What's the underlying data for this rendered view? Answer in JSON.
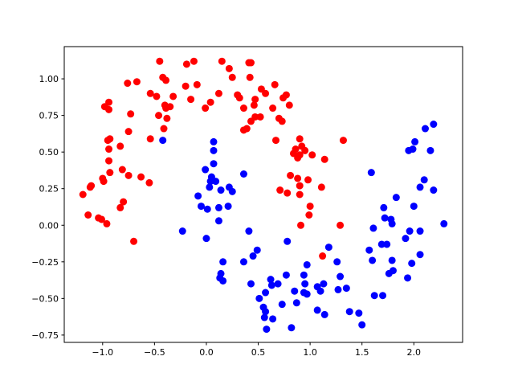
{
  "chart_data": {
    "type": "scatter",
    "xlim": [
      -1.37,
      2.47
    ],
    "ylim": [
      -0.8,
      1.22
    ],
    "xticks": [
      {
        "value": -1,
        "label": "−1.0"
      },
      {
        "value": -0.5,
        "label": "−0.5"
      },
      {
        "value": 0,
        "label": "0.0"
      },
      {
        "value": 0.5,
        "label": "0.5"
      },
      {
        "value": 1,
        "label": "1.0"
      },
      {
        "value": 1.5,
        "label": "1.5"
      },
      {
        "value": 2,
        "label": "2.0"
      }
    ],
    "yticks": [
      {
        "value": -0.75,
        "label": "−0.75"
      },
      {
        "value": -0.5,
        "label": "−0.50"
      },
      {
        "value": -0.25,
        "label": "−0.25"
      },
      {
        "value": 0,
        "label": "0.00"
      },
      {
        "value": 0.25,
        "label": "0.25"
      },
      {
        "value": 0.5,
        "label": "0.50"
      },
      {
        "value": 0.75,
        "label": "0.75"
      },
      {
        "value": 1,
        "label": "1.00"
      }
    ],
    "series": [
      {
        "color": "#ff0000",
        "x": [
          -1.19,
          -1.12,
          -1.11,
          -1.14,
          -1.04,
          -1.01,
          -0.96,
          -1.0,
          -0.99,
          -0.93,
          -0.94,
          -0.94,
          -0.93,
          -0.95,
          -0.98,
          -0.94,
          -0.94,
          -0.83,
          -0.81,
          -0.8,
          -0.83,
          -0.75,
          -0.75,
          -0.73,
          -0.76,
          -0.67,
          -0.63,
          -0.7,
          -0.55,
          -0.54,
          -0.54,
          -0.45,
          -0.46,
          -0.4,
          -0.39,
          -0.39,
          -0.41,
          -0.38,
          -0.35,
          -0.32,
          -0.48,
          -0.42,
          -0.19,
          -0.2,
          -0.15,
          -0.12,
          -0.09,
          -0.01,
          0.04,
          0.12,
          0.15,
          0.22,
          0.25,
          0.3,
          0.32,
          0.36,
          0.36,
          0.39,
          0.41,
          0.42,
          0.43,
          0.46,
          0.47,
          0.47,
          0.43,
          0.53,
          0.57,
          0.52,
          0.64,
          0.66,
          0.67,
          0.7,
          0.73,
          0.74,
          0.77,
          0.8,
          0.71,
          0.81,
          0.84,
          0.86,
          0.88,
          0.9,
          0.9,
          0.9,
          0.9,
          0.92,
          0.95,
          0.88,
          0.98,
          1.0,
          0.99,
          1.02,
          0.91,
          1.14,
          1.11,
          1.12,
          1.32,
          1.29,
          0.78
        ],
        "values": [
          0.21,
          0.26,
          0.27,
          0.07,
          0.05,
          0.04,
          0.01,
          0.32,
          0.3,
          0.36,
          0.44,
          0.52,
          0.59,
          0.58,
          0.81,
          0.84,
          0.79,
          0.54,
          0.38,
          0.16,
          0.12,
          0.34,
          0.64,
          0.76,
          0.97,
          0.98,
          0.33,
          -0.11,
          0.29,
          0.59,
          0.9,
          1.12,
          0.75,
          0.82,
          0.99,
          0.8,
          0.66,
          0.73,
          0.81,
          0.88,
          0.88,
          1.01,
          1.1,
          0.95,
          0.86,
          1.12,
          0.96,
          0.8,
          0.84,
          0.9,
          1.12,
          1.07,
          1.01,
          0.89,
          0.87,
          0.8,
          0.65,
          0.66,
          1.11,
          1.01,
          1.11,
          0.82,
          0.86,
          0.74,
          0.71,
          0.93,
          0.9,
          0.74,
          0.8,
          0.96,
          0.58,
          0.73,
          0.71,
          0.87,
          0.89,
          0.82,
          0.24,
          0.34,
          0.49,
          0.52,
          0.32,
          0.59,
          0.48,
          0.21,
          0.27,
          0.54,
          0.51,
          0.46,
          0.31,
          0.13,
          0.07,
          0.48,
          0.0,
          0.45,
          0.26,
          -0.21,
          0.58,
          0.0,
          0.22
        ]
      },
      {
        "color": "#0000ff",
        "x": [
          -0.42,
          0.07,
          0.07,
          0.07,
          0.05,
          0.04,
          -0.01,
          0.03,
          -0.08,
          -0.05,
          0.09,
          0.14,
          0.01,
          0.12,
          0.12,
          0.21,
          0.22,
          0.25,
          -0.23,
          0.0,
          0.16,
          0.14,
          0.13,
          0.16,
          0.36,
          0.36,
          0.41,
          0.43,
          0.45,
          0.49,
          0.51,
          0.55,
          0.56,
          0.57,
          0.58,
          0.57,
          0.64,
          0.63,
          0.62,
          0.69,
          0.73,
          0.78,
          0.77,
          0.82,
          0.85,
          0.87,
          0.94,
          0.94,
          0.95,
          0.97,
          0.97,
          1.07,
          1.07,
          1.1,
          1.13,
          1.14,
          1.18,
          1.26,
          1.29,
          1.27,
          1.35,
          1.38,
          1.47,
          1.5,
          1.57,
          1.6,
          1.62,
          1.61,
          1.59,
          1.7,
          1.71,
          1.72,
          1.69,
          1.74,
          1.76,
          1.79,
          1.78,
          1.79,
          1.8,
          1.83,
          1.92,
          1.94,
          1.95,
          1.96,
          1.98,
          2.0,
          1.99,
          2.01,
          2.06,
          2.06,
          2.06,
          2.1,
          2.11,
          2.16,
          2.19,
          2.19,
          2.29
        ],
        "values": [
          0.58,
          0.57,
          0.51,
          0.42,
          0.33,
          0.3,
          0.38,
          0.26,
          0.2,
          0.13,
          0.3,
          0.24,
          0.11,
          0.12,
          0.03,
          0.13,
          0.26,
          0.23,
          -0.04,
          -0.09,
          -0.25,
          -0.33,
          -0.36,
          -0.38,
          0.35,
          -0.25,
          -0.04,
          -0.4,
          -0.21,
          -0.17,
          -0.5,
          -0.56,
          -0.63,
          -0.59,
          -0.71,
          -0.46,
          -0.64,
          -0.41,
          -0.37,
          -0.4,
          -0.54,
          -0.11,
          -0.34,
          -0.7,
          -0.45,
          -0.53,
          -0.34,
          -0.46,
          -0.4,
          -0.27,
          -0.47,
          -0.58,
          -0.42,
          -0.45,
          -0.4,
          -0.61,
          -0.15,
          -0.25,
          -0.35,
          -0.44,
          -0.43,
          -0.59,
          -0.6,
          -0.68,
          -0.17,
          -0.24,
          -0.48,
          -0.02,
          0.36,
          -0.48,
          0.12,
          0.05,
          -0.13,
          -0.13,
          -0.33,
          -0.24,
          0.04,
          0.01,
          -0.31,
          0.19,
          -0.09,
          -0.36,
          0.51,
          -0.04,
          -0.26,
          0.13,
          0.52,
          0.57,
          -0.04,
          -0.2,
          0.26,
          0.31,
          0.66,
          0.51,
          0.24,
          0.69,
          0.01
        ]
      }
    ]
  }
}
